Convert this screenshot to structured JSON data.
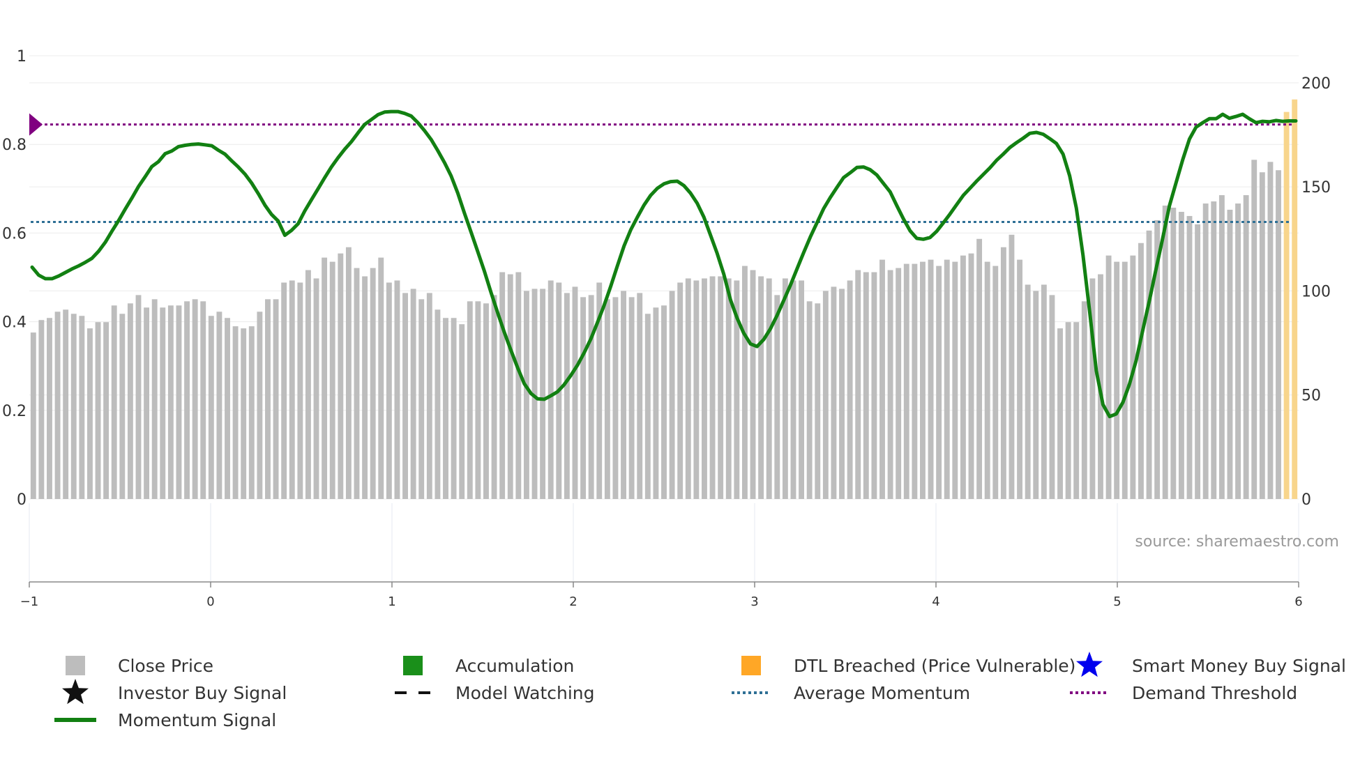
{
  "chart_data": {
    "type": "bar+line",
    "source": "source: sharemaestro.com",
    "left_axis": {
      "ticks": [
        0,
        0.2,
        0.4,
        0.6,
        0.8,
        1
      ],
      "labels": [
        "0",
        "0.2",
        "0.4",
        "0.6",
        "0.8",
        "1"
      ],
      "range": [
        0,
        1
      ]
    },
    "right_axis": {
      "ticks": [
        0,
        50,
        100,
        150,
        200
      ],
      "labels": [
        "0",
        "50",
        "100",
        "150",
        "200"
      ],
      "range": [
        0,
        213
      ]
    },
    "x_axis": {
      "ticks": [
        -1,
        0,
        1,
        2,
        3,
        4,
        5,
        6
      ],
      "labels": [
        "−1",
        "0",
        "1",
        "2",
        "3",
        "4",
        "5",
        "6"
      ],
      "range": [
        -1,
        6
      ]
    },
    "average_momentum": 0.625,
    "demand_threshold": 0.845,
    "colors": {
      "close_price": "#bdbdbd",
      "momentum": "#128012",
      "accumulation": "#1a8f1a",
      "dtl": "#ffa726",
      "dtl_bar": "#f8d58c",
      "average": "#2e6f95",
      "threshold": "#800080",
      "smart_money": "#0000ee",
      "investor": "#111111",
      "watching": "#111111",
      "grid": "#ececec",
      "axis": "#888888"
    },
    "series": [
      {
        "name": "Close Price",
        "axis": "right",
        "values": [
          80,
          86,
          87,
          90,
          91,
          89,
          88,
          82,
          85,
          85,
          93,
          89,
          94,
          98,
          92,
          96,
          92,
          93,
          93,
          95,
          96,
          95,
          88,
          90,
          87,
          83,
          82,
          83,
          90,
          96,
          96,
          104,
          105,
          104,
          110,
          106,
          116,
          114,
          118,
          121,
          111,
          107,
          111,
          116,
          104,
          105,
          99,
          101,
          96,
          99,
          91,
          87,
          87,
          84,
          95,
          95,
          94,
          98,
          109,
          108,
          109,
          100,
          101,
          101,
          105,
          104,
          99,
          102,
          97,
          98,
          104,
          96,
          97,
          100,
          97,
          99,
          89,
          92,
          93,
          100,
          104,
          106,
          105,
          106,
          107,
          107,
          106,
          105,
          112,
          110,
          107,
          106,
          98,
          106,
          105,
          105,
          95,
          94,
          100,
          102,
          101,
          105,
          110,
          109,
          109,
          115,
          110,
          111,
          113,
          113,
          114,
          115,
          112,
          115,
          114,
          117,
          118,
          125,
          114,
          112,
          121,
          127,
          115,
          103,
          100,
          103,
          98,
          82,
          85,
          85,
          95,
          106,
          108,
          117,
          114,
          114,
          117,
          123,
          129,
          134,
          141,
          140,
          138,
          136,
          132,
          142,
          143,
          146,
          139,
          142,
          146,
          163,
          157,
          162,
          158,
          186,
          192
        ]
      },
      {
        "name": "Momentum Signal",
        "axis": "left",
        "values": [
          0.523,
          0.505,
          0.497,
          0.497,
          0.503,
          0.511,
          0.519,
          0.526,
          0.534,
          0.543,
          0.559,
          0.579,
          0.604,
          0.628,
          0.654,
          0.679,
          0.705,
          0.727,
          0.75,
          0.761,
          0.779,
          0.785,
          0.795,
          0.798,
          0.8,
          0.801,
          0.799,
          0.797,
          0.787,
          0.778,
          0.763,
          0.749,
          0.733,
          0.713,
          0.689,
          0.663,
          0.642,
          0.627,
          0.595,
          0.606,
          0.621,
          0.65,
          0.675,
          0.7,
          0.725,
          0.749,
          0.77,
          0.789,
          0.806,
          0.826,
          0.845,
          0.856,
          0.867,
          0.873,
          0.874,
          0.874,
          0.87,
          0.864,
          0.849,
          0.831,
          0.811,
          0.786,
          0.759,
          0.729,
          0.69,
          0.645,
          0.602,
          0.558,
          0.514,
          0.466,
          0.42,
          0.376,
          0.335,
          0.296,
          0.26,
          0.238,
          0.226,
          0.225,
          0.233,
          0.242,
          0.258,
          0.279,
          0.302,
          0.33,
          0.361,
          0.398,
          0.437,
          0.48,
          0.526,
          0.571,
          0.607,
          0.636,
          0.663,
          0.685,
          0.701,
          0.711,
          0.716,
          0.717,
          0.707,
          0.69,
          0.667,
          0.636,
          0.595,
          0.554,
          0.507,
          0.449,
          0.408,
          0.374,
          0.35,
          0.344,
          0.36,
          0.384,
          0.414,
          0.448,
          0.482,
          0.519,
          0.556,
          0.591,
          0.623,
          0.655,
          0.68,
          0.703,
          0.725,
          0.736,
          0.748,
          0.749,
          0.743,
          0.731,
          0.712,
          0.693,
          0.662,
          0.632,
          0.605,
          0.588,
          0.586,
          0.59,
          0.604,
          0.623,
          0.643,
          0.664,
          0.685,
          0.701,
          0.717,
          0.732,
          0.747,
          0.764,
          0.778,
          0.793,
          0.804,
          0.814,
          0.825,
          0.827,
          0.823,
          0.813,
          0.802,
          0.778,
          0.729,
          0.656,
          0.55,
          0.422,
          0.289,
          0.213,
          0.186,
          0.192,
          0.218,
          0.26,
          0.313,
          0.382,
          0.449,
          0.52,
          0.59,
          0.662,
          0.714,
          0.766,
          0.812,
          0.839,
          0.849,
          0.858,
          0.858,
          0.868,
          0.859,
          0.863,
          0.868,
          0.858,
          0.849,
          0.852,
          0.851,
          0.854,
          0.852,
          0.853,
          0.853
        ]
      }
    ],
    "legend": [
      {
        "label": "Close Price",
        "icon": "gray-square-icon"
      },
      {
        "label": "Accumulation",
        "icon": "green-square-icon"
      },
      {
        "label": "DTL Breached (Price Vulnerable)",
        "icon": "orange-square-icon"
      },
      {
        "label": "Smart Money Buy Signal",
        "icon": "blue-star-icon"
      },
      {
        "label": "Investor Buy Signal",
        "icon": "black-star-icon"
      },
      {
        "label": "Model Watching",
        "icon": "dashed-line-icon"
      },
      {
        "label": "Average Momentum",
        "icon": "blue-dotted-line-icon"
      },
      {
        "label": "Demand Threshold",
        "icon": "purple-dotted-line-icon"
      },
      {
        "label": "Momentum Signal",
        "icon": "green-line-icon"
      }
    ]
  }
}
